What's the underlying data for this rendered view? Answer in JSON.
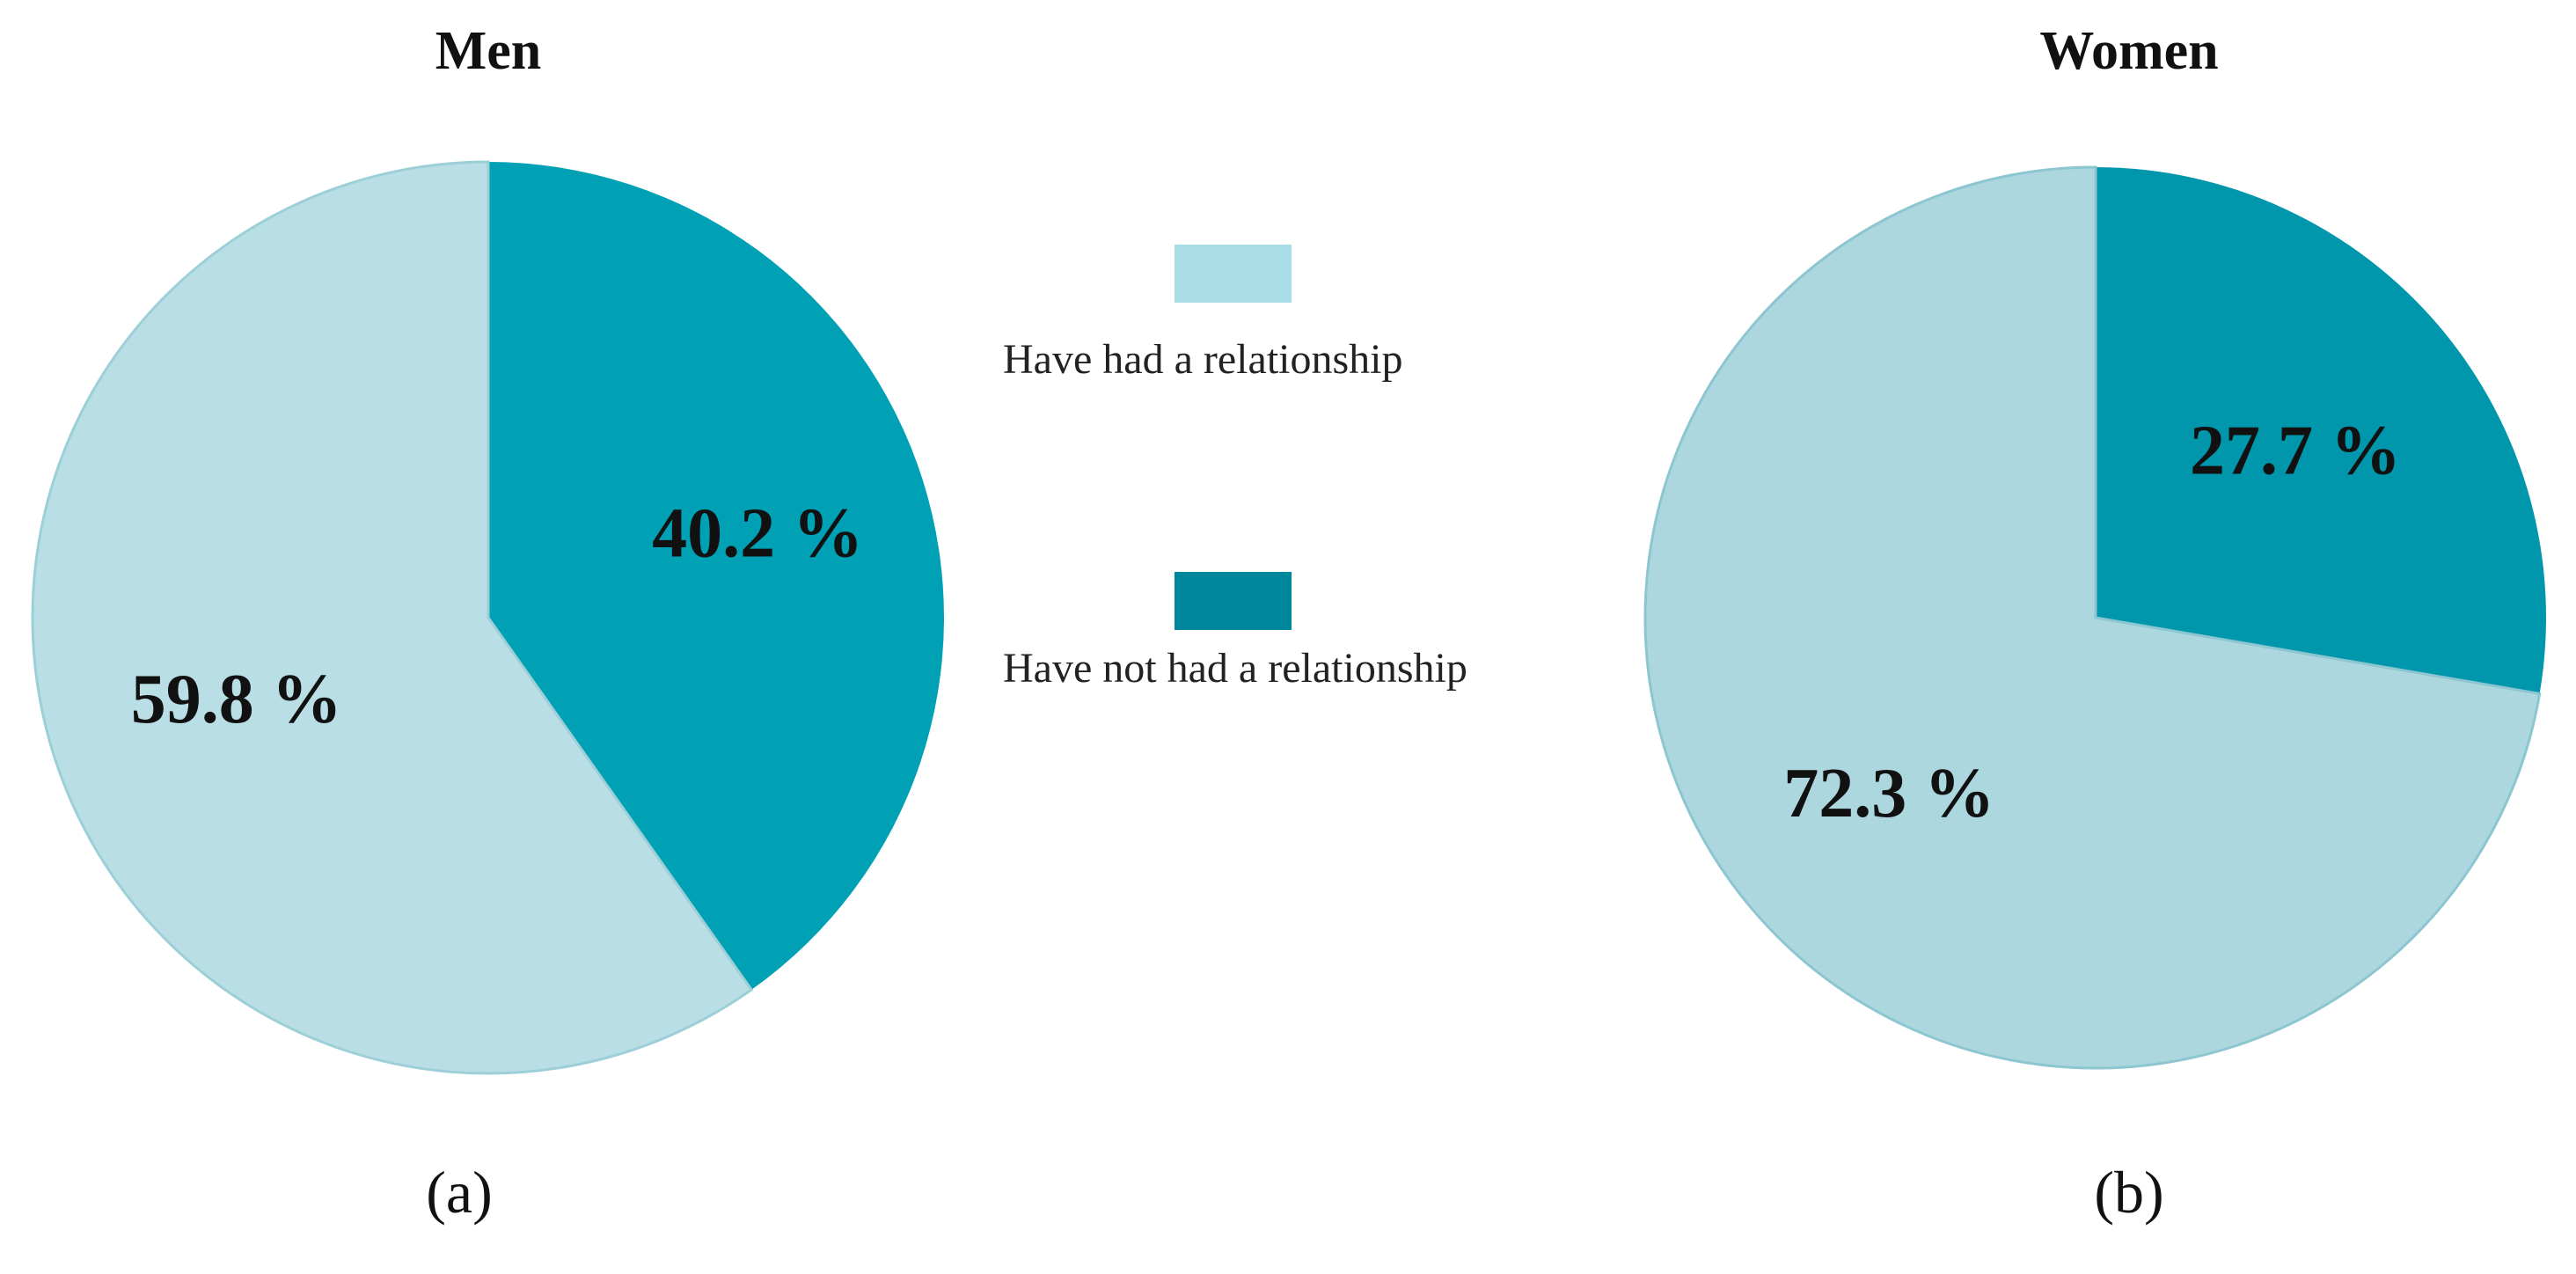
{
  "chart_data": [
    {
      "type": "pie",
      "title": "Men",
      "panel_label": "(a)",
      "slices": [
        {
          "label": "Have not had a relationship",
          "value": 40.2,
          "display": "40.2 %",
          "color": "#00A0B5"
        },
        {
          "label": "Have had a relationship",
          "value": 59.8,
          "display": "59.8 %",
          "color": "#B9DEE5"
        }
      ]
    },
    {
      "type": "pie",
      "title": "Women",
      "panel_label": "(b)",
      "slices": [
        {
          "label": "Have not had a relationship",
          "value": 27.7,
          "display": "27.7 %",
          "color": "#0097AD"
        },
        {
          "label": "Have had a relationship",
          "value": 72.3,
          "display": "72.3 %",
          "color": "#ADD7DF"
        }
      ]
    }
  ],
  "legend": {
    "placement": "center",
    "items": [
      {
        "label": "Have had a relationship",
        "color": "#A8DCE6"
      },
      {
        "label": "Have not had a relationship",
        "color": "#00879B"
      }
    ]
  }
}
